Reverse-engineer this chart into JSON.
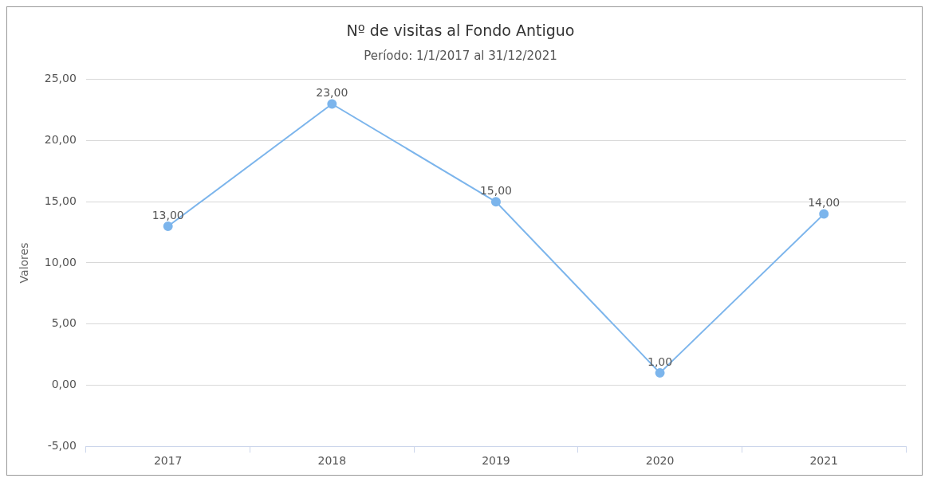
{
  "chart_data": {
    "type": "line",
    "title": "Nº de visitas al Fondo Antiguo",
    "subtitle": "Período: 1/1/2017 al 31/12/2021",
    "ylabel": "Valores",
    "categories": [
      "2017",
      "2018",
      "2019",
      "2020",
      "2021"
    ],
    "series": [
      {
        "color": "#7cb5ec",
        "values": [
          13,
          23,
          15,
          1,
          14
        ],
        "value_labels": [
          "13,00",
          "23,00",
          "15,00",
          "1,00",
          "14,00"
        ]
      }
    ],
    "ylim": [
      -5,
      25
    ],
    "yticks": [
      {
        "value": -5,
        "label": "-5,00"
      },
      {
        "value": 0,
        "label": "0,00"
      },
      {
        "value": 5,
        "label": "5,00"
      },
      {
        "value": 10,
        "label": "10,00"
      },
      {
        "value": 15,
        "label": "15,00"
      },
      {
        "value": 20,
        "label": "20,00"
      },
      {
        "value": 25,
        "label": "25,00"
      }
    ],
    "grid": "y",
    "legend": false,
    "marker": "circle",
    "line_style": "solid"
  }
}
